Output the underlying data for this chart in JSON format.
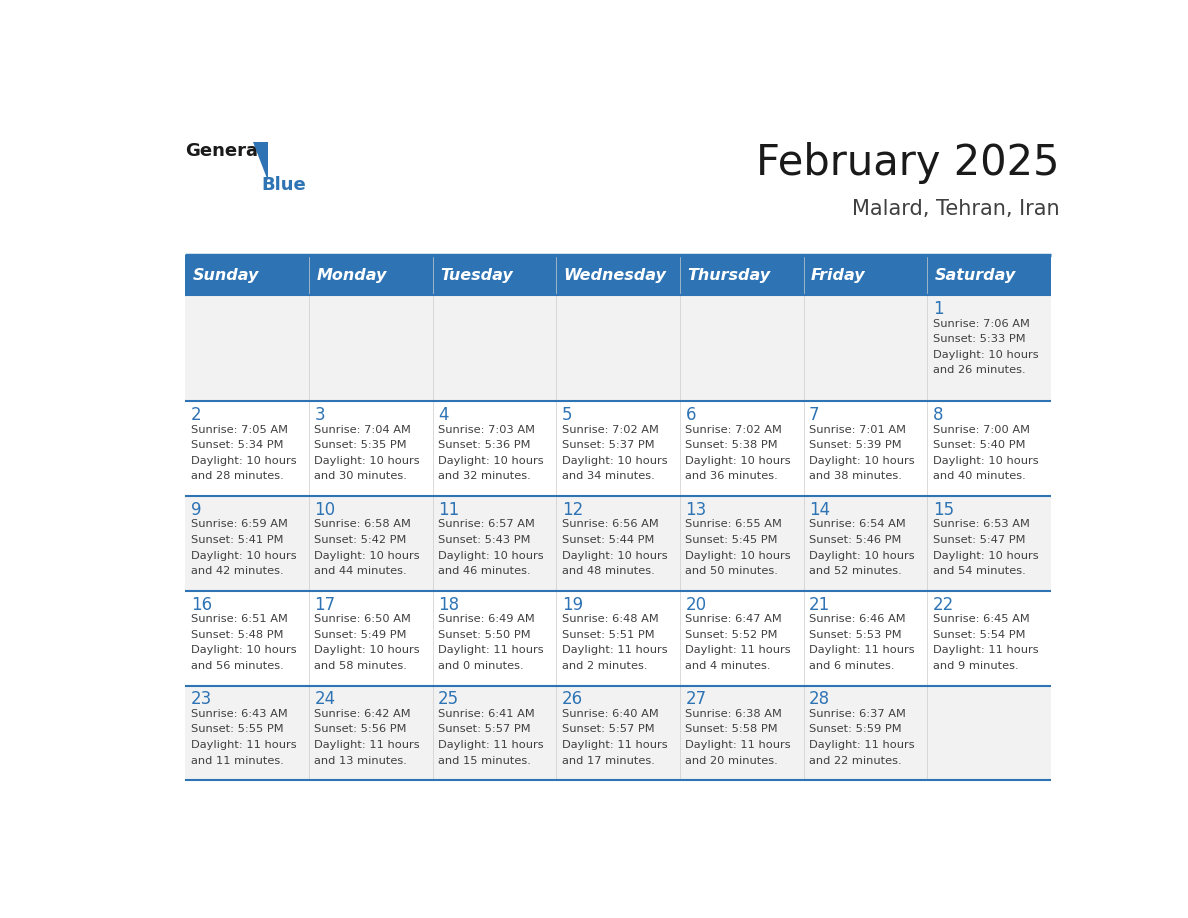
{
  "title": "February 2025",
  "subtitle": "Malard, Tehran, Iran",
  "header_bg_color": "#2E74B5",
  "header_text_color": "#FFFFFF",
  "header_days": [
    "Sunday",
    "Monday",
    "Tuesday",
    "Wednesday",
    "Thursday",
    "Friday",
    "Saturday"
  ],
  "bg_color": "#FFFFFF",
  "alt_row_color": "#F2F2F2",
  "border_color": "#2E74B5",
  "day_number_color": "#2E74B5",
  "cell_text_color": "#404040",
  "logo_general_color": "#1A1A1A",
  "logo_blue_color": "#2E74B5",
  "calendar_data": [
    [
      null,
      null,
      null,
      null,
      null,
      null,
      1
    ],
    [
      2,
      3,
      4,
      5,
      6,
      7,
      8
    ],
    [
      9,
      10,
      11,
      12,
      13,
      14,
      15
    ],
    [
      16,
      17,
      18,
      19,
      20,
      21,
      22
    ],
    [
      23,
      24,
      25,
      26,
      27,
      28,
      null
    ]
  ],
  "sun_data": {
    "1": {
      "sunrise": "7:06 AM",
      "sunset": "5:33 PM",
      "daylight_h": "10 hours",
      "daylight_m": "and 26 minutes."
    },
    "2": {
      "sunrise": "7:05 AM",
      "sunset": "5:34 PM",
      "daylight_h": "10 hours",
      "daylight_m": "and 28 minutes."
    },
    "3": {
      "sunrise": "7:04 AM",
      "sunset": "5:35 PM",
      "daylight_h": "10 hours",
      "daylight_m": "and 30 minutes."
    },
    "4": {
      "sunrise": "7:03 AM",
      "sunset": "5:36 PM",
      "daylight_h": "10 hours",
      "daylight_m": "and 32 minutes."
    },
    "5": {
      "sunrise": "7:02 AM",
      "sunset": "5:37 PM",
      "daylight_h": "10 hours",
      "daylight_m": "and 34 minutes."
    },
    "6": {
      "sunrise": "7:02 AM",
      "sunset": "5:38 PM",
      "daylight_h": "10 hours",
      "daylight_m": "and 36 minutes."
    },
    "7": {
      "sunrise": "7:01 AM",
      "sunset": "5:39 PM",
      "daylight_h": "10 hours",
      "daylight_m": "and 38 minutes."
    },
    "8": {
      "sunrise": "7:00 AM",
      "sunset": "5:40 PM",
      "daylight_h": "10 hours",
      "daylight_m": "and 40 minutes."
    },
    "9": {
      "sunrise": "6:59 AM",
      "sunset": "5:41 PM",
      "daylight_h": "10 hours",
      "daylight_m": "and 42 minutes."
    },
    "10": {
      "sunrise": "6:58 AM",
      "sunset": "5:42 PM",
      "daylight_h": "10 hours",
      "daylight_m": "and 44 minutes."
    },
    "11": {
      "sunrise": "6:57 AM",
      "sunset": "5:43 PM",
      "daylight_h": "10 hours",
      "daylight_m": "and 46 minutes."
    },
    "12": {
      "sunrise": "6:56 AM",
      "sunset": "5:44 PM",
      "daylight_h": "10 hours",
      "daylight_m": "and 48 minutes."
    },
    "13": {
      "sunrise": "6:55 AM",
      "sunset": "5:45 PM",
      "daylight_h": "10 hours",
      "daylight_m": "and 50 minutes."
    },
    "14": {
      "sunrise": "6:54 AM",
      "sunset": "5:46 PM",
      "daylight_h": "10 hours",
      "daylight_m": "and 52 minutes."
    },
    "15": {
      "sunrise": "6:53 AM",
      "sunset": "5:47 PM",
      "daylight_h": "10 hours",
      "daylight_m": "and 54 minutes."
    },
    "16": {
      "sunrise": "6:51 AM",
      "sunset": "5:48 PM",
      "daylight_h": "10 hours",
      "daylight_m": "and 56 minutes."
    },
    "17": {
      "sunrise": "6:50 AM",
      "sunset": "5:49 PM",
      "daylight_h": "10 hours",
      "daylight_m": "and 58 minutes."
    },
    "18": {
      "sunrise": "6:49 AM",
      "sunset": "5:50 PM",
      "daylight_h": "11 hours",
      "daylight_m": "and 0 minutes."
    },
    "19": {
      "sunrise": "6:48 AM",
      "sunset": "5:51 PM",
      "daylight_h": "11 hours",
      "daylight_m": "and 2 minutes."
    },
    "20": {
      "sunrise": "6:47 AM",
      "sunset": "5:52 PM",
      "daylight_h": "11 hours",
      "daylight_m": "and 4 minutes."
    },
    "21": {
      "sunrise": "6:46 AM",
      "sunset": "5:53 PM",
      "daylight_h": "11 hours",
      "daylight_m": "and 6 minutes."
    },
    "22": {
      "sunrise": "6:45 AM",
      "sunset": "5:54 PM",
      "daylight_h": "11 hours",
      "daylight_m": "and 9 minutes."
    },
    "23": {
      "sunrise": "6:43 AM",
      "sunset": "5:55 PM",
      "daylight_h": "11 hours",
      "daylight_m": "and 11 minutes."
    },
    "24": {
      "sunrise": "6:42 AM",
      "sunset": "5:56 PM",
      "daylight_h": "11 hours",
      "daylight_m": "and 13 minutes."
    },
    "25": {
      "sunrise": "6:41 AM",
      "sunset": "5:57 PM",
      "daylight_h": "11 hours",
      "daylight_m": "and 15 minutes."
    },
    "26": {
      "sunrise": "6:40 AM",
      "sunset": "5:57 PM",
      "daylight_h": "11 hours",
      "daylight_m": "and 17 minutes."
    },
    "27": {
      "sunrise": "6:38 AM",
      "sunset": "5:58 PM",
      "daylight_h": "11 hours",
      "daylight_m": "and 20 minutes."
    },
    "28": {
      "sunrise": "6:37 AM",
      "sunset": "5:59 PM",
      "daylight_h": "11 hours",
      "daylight_m": "and 22 minutes."
    }
  }
}
